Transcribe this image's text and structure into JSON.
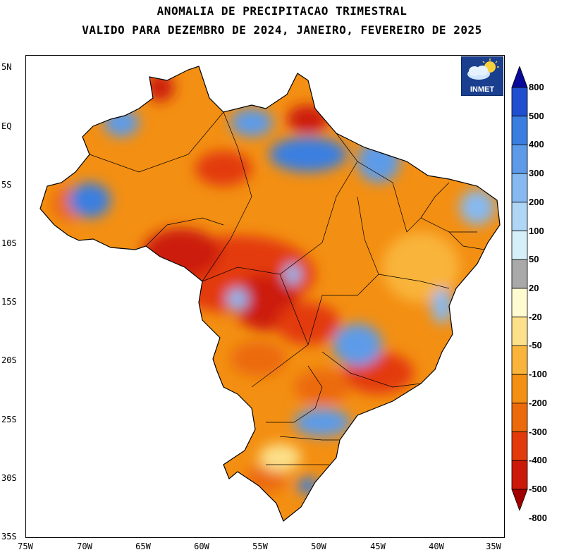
{
  "title_line1": "ANOMALIA DE PRECIPITACAO TRIMESTRAL",
  "title_line2": "VALIDO PARA DEZEMBRO DE 2024, JANEIRO, FEVEREIRO DE 2025",
  "axes": {
    "y_ticks": [
      "5N",
      "EQ",
      "5S",
      "10S",
      "15S",
      "20S",
      "25S",
      "30S",
      "35S"
    ],
    "x_ticks": [
      "75W",
      "70W",
      "65W",
      "60W",
      "55W",
      "50W",
      "45W",
      "40W",
      "35W"
    ]
  },
  "logo": {
    "text": "INMET",
    "icon": "cloud-sun-icon"
  },
  "colorbar": {
    "labels": [
      "800",
      "500",
      "400",
      "300",
      "200",
      "100",
      "50",
      "20",
      "-20",
      "-50",
      "-100",
      "-200",
      "-300",
      "-400",
      "-500",
      "-800"
    ],
    "colors": [
      "#08089a",
      "#1f4fd0",
      "#3a7fe0",
      "#5d9be8",
      "#86b9f0",
      "#b0d6f5",
      "#d6f0fa",
      "#a9a9a9",
      "#fffbd0",
      "#fce08a",
      "#f9b43b",
      "#f38f12",
      "#ec6a0c",
      "#e33a0b",
      "#cc1a0a",
      "#a00000"
    ]
  },
  "chart_data": {
    "type": "heatmap",
    "title": "ANOMALIA DE PRECIPITACAO TRIMESTRAL",
    "subtitle": "VALIDO PARA DEZEMBRO DE 2024, JANEIRO, FEVEREIRO DE 2025",
    "xlim": [
      -75,
      -35
    ],
    "ylim": [
      -35,
      5
    ],
    "x_tick_labels": [
      "75W",
      "70W",
      "65W",
      "60W",
      "55W",
      "50W",
      "45W",
      "40W",
      "35W"
    ],
    "y_tick_labels": [
      "5N",
      "EQ",
      "5S",
      "10S",
      "15S",
      "20S",
      "25S",
      "30S",
      "35S"
    ],
    "color_levels": [
      -800,
      -500,
      -400,
      -300,
      -200,
      -100,
      -50,
      -20,
      20,
      50,
      100,
      200,
      300,
      400,
      500,
      800
    ],
    "region": "Brasil"
  }
}
